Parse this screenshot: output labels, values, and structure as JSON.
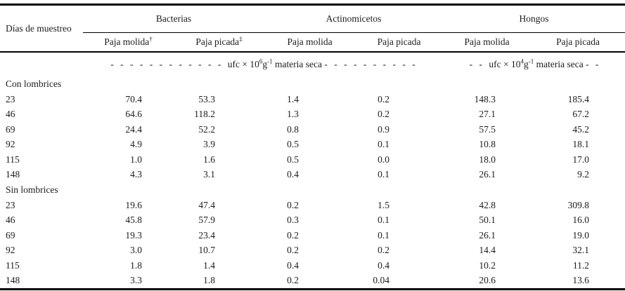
{
  "table": {
    "row_header_label": "Días de muestreo",
    "groups": [
      {
        "label": "Bacterias",
        "subcols": [
          {
            "label": "Paja molida",
            "sup": "†"
          },
          {
            "label": "Paja picada",
            "sup": "‡"
          }
        ]
      },
      {
        "label": "Actinomicetos",
        "subcols": [
          {
            "label": "Paja molida",
            "sup": ""
          },
          {
            "label": "Paja picada",
            "sup": ""
          }
        ]
      },
      {
        "label": "Hongos",
        "subcols": [
          {
            "label": "Paja molida",
            "sup": ""
          },
          {
            "label": "Paja picada",
            "sup": ""
          }
        ]
      }
    ],
    "units": [
      {
        "dashes_left": "- - - - - - - - - - - - ",
        "base": "ufc × 10",
        "exp": "6",
        "g": "g",
        "gexp": "-1",
        "rest": " materia seca ",
        "dashes_right": "- - - - - - - - - -"
      },
      {
        "dashes_left": "- - ",
        "base": "ufc × 10",
        "exp": "4",
        "g": "g",
        "gexp": "-1",
        "rest": " materia seca ",
        "dashes_right": "- -"
      }
    ],
    "sections": [
      {
        "label": "Con lombrices",
        "rows": [
          {
            "day": "23",
            "values": [
              "70.4",
              "53.3",
              "1.4",
              "0.2",
              "148.3",
              "185.4"
            ]
          },
          {
            "day": "46",
            "values": [
              "64.6",
              "118.2",
              "1.3",
              "0.2",
              "27.1",
              "67.2"
            ]
          },
          {
            "day": "69",
            "values": [
              "24.4",
              "52.2",
              "0.8",
              "0.9",
              "57.5",
              "45.2"
            ]
          },
          {
            "day": "92",
            "values": [
              "4.9",
              "3.9",
              "0.5",
              "0.1",
              "10.8",
              "18.1"
            ]
          },
          {
            "day": "115",
            "values": [
              "1.0",
              "1.6",
              "0.5",
              "0.0",
              "18.0",
              "17.0"
            ]
          },
          {
            "day": "148",
            "values": [
              "4.3",
              "3.1",
              "0.4",
              "0.1",
              "26.1",
              "9.2"
            ]
          }
        ]
      },
      {
        "label": "Sin lombrices",
        "rows": [
          {
            "day": "23",
            "values": [
              "19.6",
              "47.4",
              "0.2",
              "1.5",
              "42.8",
              "309.8"
            ]
          },
          {
            "day": "46",
            "values": [
              "45.8",
              "57.9",
              "0.3",
              "0.1",
              "50.1",
              "16.0"
            ]
          },
          {
            "day": "69",
            "values": [
              "19.3",
              "23.4",
              "0.2",
              "0.1",
              "26.1",
              "19.0"
            ]
          },
          {
            "day": "92",
            "values": [
              "3.0",
              "10.7",
              "0.2",
              "0.2",
              "14.4",
              "32.1"
            ]
          },
          {
            "day": "115",
            "values": [
              "1.8",
              "1.4",
              "0.4",
              "0.4",
              "10.2",
              "11.2"
            ]
          },
          {
            "day": "148",
            "values": [
              "3.3",
              "1.8",
              "0.2",
              "0.04",
              "20.6",
              "13.6"
            ]
          }
        ]
      }
    ]
  }
}
